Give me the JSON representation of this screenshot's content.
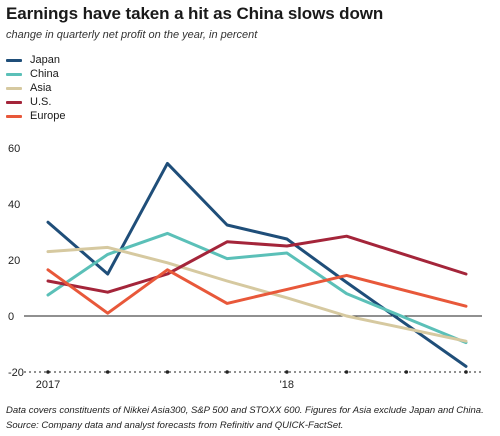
{
  "title": "Earnings have taken a hit as China slows down",
  "subtitle": "change in quarterly net profit on the year, in percent",
  "footnotes": {
    "note": "Data covers constituents of Nikkei Asia300, S&P 500 and STOXX 600. Figures for Asia exclude Japan and China.",
    "source": "Source: Company data and analyst forecasts from Refinitiv and QUICK-FactSet."
  },
  "legend": [
    {
      "label": "Japan",
      "color": "#1f4e79"
    },
    {
      "label": "China",
      "color": "#5bc0b8"
    },
    {
      "label": "Asia",
      "color": "#d6c9a0"
    },
    {
      "label": "U.S.",
      "color": "#a4253a"
    },
    {
      "label": "Europe",
      "color": "#e8583a"
    }
  ],
  "chart_data": {
    "type": "line",
    "x": [
      "Q1 2017",
      "Q2 2017",
      "Q3 2017",
      "Q4 2017",
      "Q1 2018",
      "Q2 2018",
      "Q3 2018",
      "Q4 2018"
    ],
    "x_tick_labels": [
      "2017",
      "",
      "",
      "",
      "'18",
      "",
      "",
      ""
    ],
    "ylim": [
      -20,
      60
    ],
    "yticks": [
      -20,
      0,
      20,
      40,
      60
    ],
    "grid": false,
    "legend_position": "top-left",
    "series": [
      {
        "name": "Japan",
        "color": "#1f4e79",
        "values": [
          33.5,
          15,
          54.5,
          32.5,
          27.5,
          12,
          null,
          -18
        ]
      },
      {
        "name": "China",
        "color": "#5bc0b8",
        "values": [
          7.5,
          22,
          29.5,
          20.5,
          22.5,
          8,
          null,
          -9.5
        ]
      },
      {
        "name": "Asia",
        "color": "#d6c9a0",
        "values": [
          23,
          24.5,
          19,
          12.5,
          6.5,
          0,
          null,
          -9
        ]
      },
      {
        "name": "U.S.",
        "color": "#a4253a",
        "values": [
          12.5,
          8.5,
          15,
          26.5,
          25,
          28.5,
          null,
          15
        ]
      },
      {
        "name": "Europe",
        "color": "#e8583a",
        "values": [
          16.5,
          1,
          16.5,
          4.5,
          9.5,
          14.5,
          null,
          3.5
        ]
      }
    ]
  }
}
